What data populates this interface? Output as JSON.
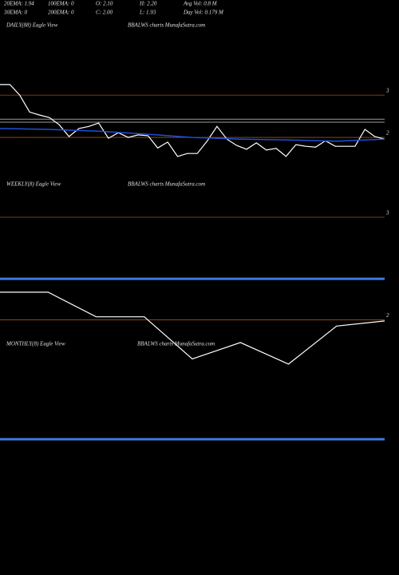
{
  "header": {
    "row1": [
      "20EMA: 1.94",
      "100EMA: 0",
      "O: 2.10",
      "H: 2.20",
      "Avg Vol: 0.8 M"
    ],
    "row2": [
      "30EMA: 0",
      "200EMA: 0",
      "C: 2.00",
      "L: 1.93",
      "Day Vol: 0.179 M"
    ]
  },
  "chart_data": [
    {
      "type": "line",
      "title": "DAILY(88) Eagle View",
      "subtitle": "BBALWS charts MunafaSutra.com",
      "ylim": [
        1,
        4.4
      ],
      "yticks": [
        2,
        3
      ],
      "series": [
        {
          "color": "#ffffff",
          "values": [
            3.25,
            3.25,
            3.0,
            2.6,
            2.53,
            2.47,
            2.3,
            2.02,
            2.21,
            2.26,
            2.34,
            1.98,
            2.11,
            2.0,
            2.06,
            2.04,
            1.75,
            1.89,
            1.55,
            1.62,
            1.62,
            1.91,
            2.26,
            1.96,
            1.81,
            1.72,
            1.87,
            1.7,
            1.74,
            1.55,
            1.83,
            1.79,
            1.77,
            1.92,
            1.79,
            1.79,
            1.79,
            2.19,
            2.02,
            1.96
          ]
        },
        {
          "color": "#1f4fd6",
          "values": [
            2.21,
            2.19,
            2.15,
            2.08,
            2.0,
            1.96,
            1.94,
            1.91,
            1.96
          ]
        }
      ],
      "levels": [
        {
          "value": 2.43,
          "color": "#9a9a9a"
        },
        {
          "value": 2.36,
          "color": "#9a9a9a"
        }
      ]
    },
    {
      "type": "line",
      "title": "WEEKLY(8) Eagle View",
      "subtitle": "BBALWS charts MunafaSutra.com",
      "ylim": [
        1.81,
        3.21
      ],
      "yticks": [
        2,
        3
      ],
      "series": [
        {
          "color": "#ffffff",
          "values": [
            2.27,
            2.27,
            2.03,
            2.03,
            1.62,
            1.78,
            1.57,
            1.94,
            1.99
          ]
        }
      ],
      "levels": [
        {
          "value": 2.4,
          "color": "#3d7be0"
        }
      ]
    },
    {
      "type": "line",
      "title": "MONTHLY(8) Eagle View",
      "subtitle": "BBALWS charts MunafaSutra.com"
    }
  ]
}
